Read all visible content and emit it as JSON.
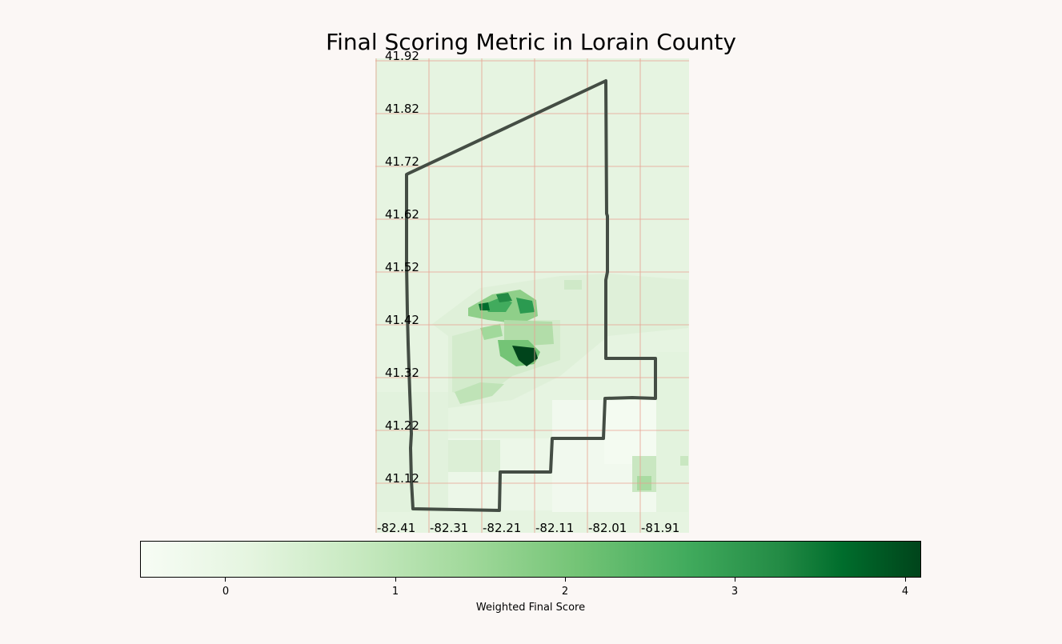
{
  "title": "Final Scoring Metric in Lorain County",
  "map": {
    "lat_ticks": [
      "41.92",
      "41.82",
      "41.72",
      "41.62",
      "41.52",
      "41.42",
      "41.32",
      "41.22",
      "41.12"
    ],
    "lon_ticks": [
      "-82.41",
      "-82.31",
      "-82.21",
      "-82.11",
      "-82.01",
      "-81.91"
    ],
    "grid_color": "#e8a090",
    "boundary_color": "#444d44",
    "colormap": "Greens"
  },
  "colorbar": {
    "label": "Weighted Final Score",
    "ticks": [
      "0",
      "1",
      "2",
      "3",
      "4"
    ],
    "range": [
      -0.5,
      4.1
    ]
  }
}
